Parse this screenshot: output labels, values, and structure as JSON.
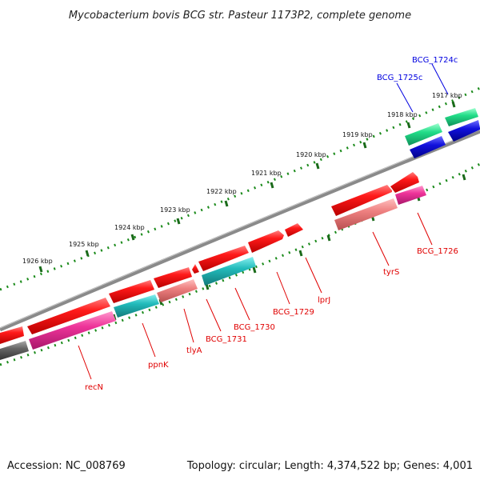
{
  "title": "Mycobacterium bovis BCG str. Pasteur 1173P2, complete genome",
  "footer": {
    "accession": "Accession: NC_008769",
    "topology": "Topology: circular; Length: 4,374,522 bp; Genes: 4,001"
  },
  "scale_labels": [
    "1917 kbp",
    "1918 kbp",
    "1919 kbp",
    "1920 kbp",
    "1921 kbp",
    "1922 kbp",
    "1923 kbp",
    "1924 kbp",
    "1925 kbp",
    "1926 kbp"
  ],
  "gene_labels": {
    "bcg1724c": "BCG_1724c",
    "bcg1725c": "BCG_1725c",
    "bcg1726": "BCG_1726",
    "tyrS": "tyrS",
    "lprJ": "lprJ",
    "bcg1729": "BCG_1729",
    "bcg1730": "BCG_1730",
    "bcg1731": "BCG_1731",
    "tlyA": "tlyA",
    "ppnK": "ppnK",
    "recN": "recN"
  },
  "colors": {
    "backbone": "#8a8a8a",
    "cds": "#ee1111",
    "rrna_pink": "#ee3399",
    "salmon": "#ee8080",
    "cyan": "#22bbbb",
    "green": "#22dd88",
    "blue": "#1111dd",
    "gray": "#666666",
    "scale": "#1a8a1a"
  }
}
